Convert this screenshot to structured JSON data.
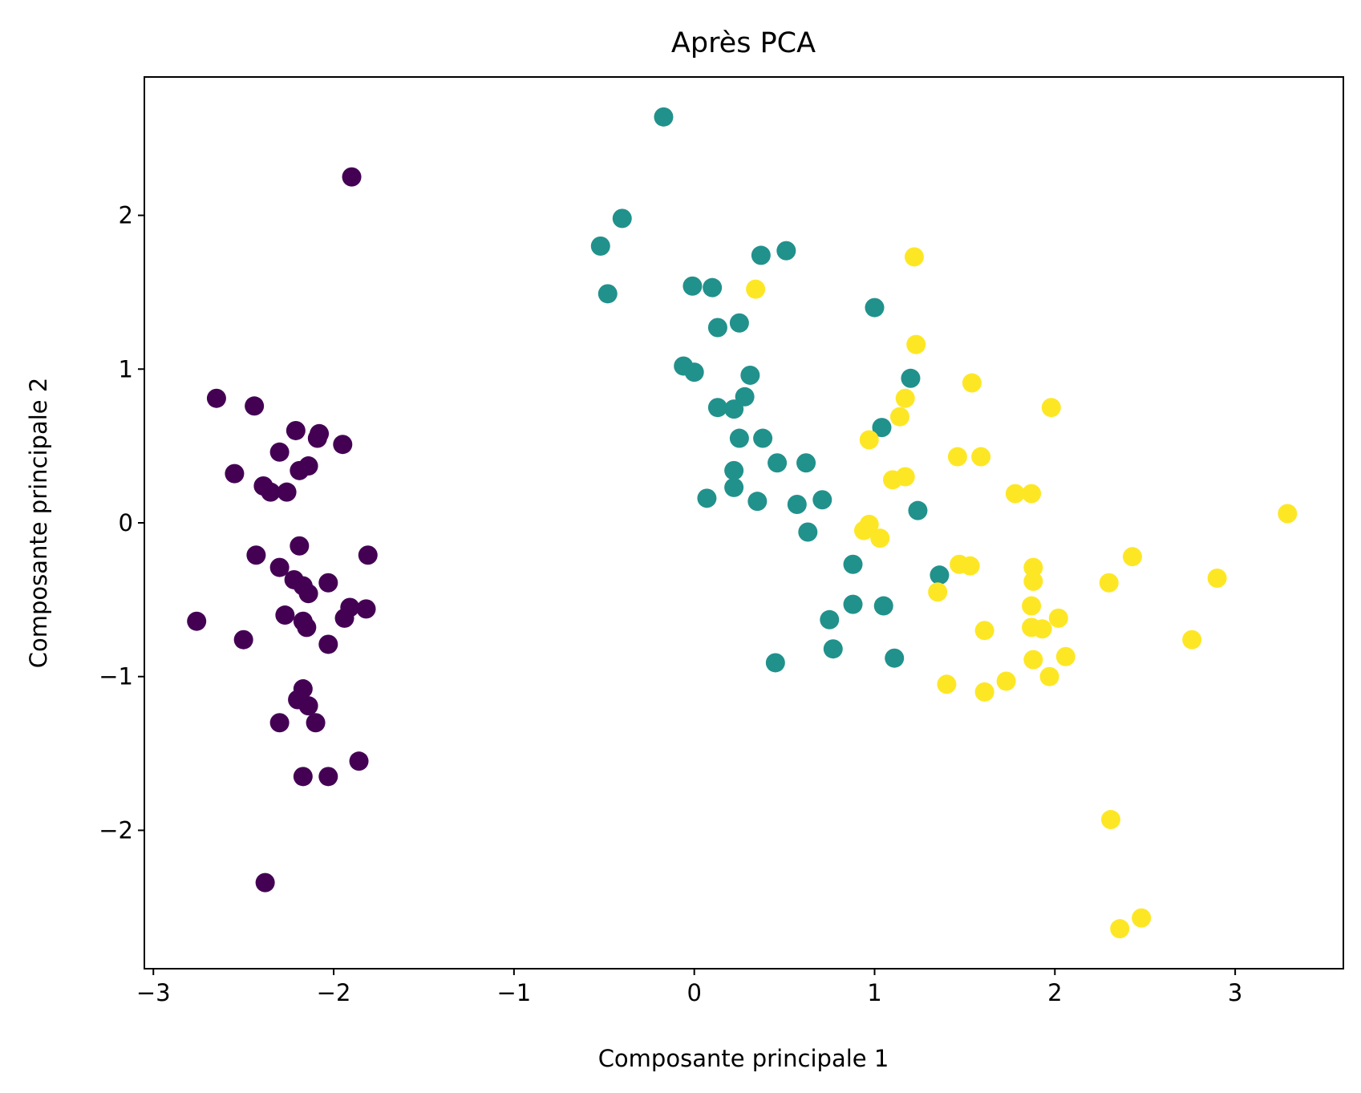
{
  "chart_data": {
    "type": "scatter",
    "title": "Après PCA",
    "xlabel": "Composante principale 1",
    "ylabel": "Composante principale 2",
    "xlim": [
      -3.05,
      3.6
    ],
    "ylim": [
      -2.9,
      2.9
    ],
    "x_ticks": [
      {
        "value": -3,
        "label": "−3"
      },
      {
        "value": -2,
        "label": "−2"
      },
      {
        "value": -1,
        "label": "−1"
      },
      {
        "value": 0,
        "label": "0"
      },
      {
        "value": 1,
        "label": "1"
      },
      {
        "value": 2,
        "label": "2"
      },
      {
        "value": 3,
        "label": "3"
      }
    ],
    "y_ticks": [
      {
        "value": -2,
        "label": "−2"
      },
      {
        "value": -1,
        "label": "−1"
      },
      {
        "value": 0,
        "label": "0"
      },
      {
        "value": 1,
        "label": "1"
      },
      {
        "value": 2,
        "label": "2"
      }
    ],
    "grid": false,
    "series": [
      {
        "color": "#440154",
        "points": [
          [
            -1.9,
            2.25
          ],
          [
            -2.65,
            0.81
          ],
          [
            -2.44,
            0.76
          ],
          [
            -2.21,
            0.6
          ],
          [
            -2.08,
            0.58
          ],
          [
            -2.09,
            0.55
          ],
          [
            -1.95,
            0.51
          ],
          [
            -2.3,
            0.46
          ],
          [
            -2.55,
            0.32
          ],
          [
            -2.14,
            0.37
          ],
          [
            -2.19,
            0.34
          ],
          [
            -2.39,
            0.24
          ],
          [
            -2.35,
            0.2
          ],
          [
            -2.26,
            0.2
          ],
          [
            -2.19,
            -0.15
          ],
          [
            -2.43,
            -0.21
          ],
          [
            -1.81,
            -0.21
          ],
          [
            -2.3,
            -0.29
          ],
          [
            -2.22,
            -0.37
          ],
          [
            -2.17,
            -0.41
          ],
          [
            -2.03,
            -0.39
          ],
          [
            -2.14,
            -0.46
          ],
          [
            -1.91,
            -0.55
          ],
          [
            -1.82,
            -0.56
          ],
          [
            -2.76,
            -0.64
          ],
          [
            -2.27,
            -0.6
          ],
          [
            -2.17,
            -0.64
          ],
          [
            -2.15,
            -0.68
          ],
          [
            -1.94,
            -0.62
          ],
          [
            -2.5,
            -0.76
          ],
          [
            -2.03,
            -0.79
          ],
          [
            -2.17,
            -1.08
          ],
          [
            -2.2,
            -1.15
          ],
          [
            -2.14,
            -1.19
          ],
          [
            -2.3,
            -1.3
          ],
          [
            -2.1,
            -1.3
          ],
          [
            -1.86,
            -1.55
          ],
          [
            -2.17,
            -1.65
          ],
          [
            -2.03,
            -1.65
          ],
          [
            -2.38,
            -2.34
          ]
        ]
      },
      {
        "color": "#21918c",
        "points": [
          [
            -0.17,
            2.64
          ],
          [
            -0.4,
            1.98
          ],
          [
            -0.52,
            1.8
          ],
          [
            -0.48,
            1.49
          ],
          [
            0.37,
            1.74
          ],
          [
            0.51,
            1.77
          ],
          [
            -0.01,
            1.54
          ],
          [
            0.1,
            1.53
          ],
          [
            1.0,
            1.4
          ],
          [
            0.13,
            1.27
          ],
          [
            0.25,
            1.3
          ],
          [
            -0.06,
            1.02
          ],
          [
            0.0,
            0.98
          ],
          [
            0.31,
            0.96
          ],
          [
            0.28,
            0.82
          ],
          [
            0.13,
            0.75
          ],
          [
            0.22,
            0.74
          ],
          [
            1.2,
            0.94
          ],
          [
            0.25,
            0.55
          ],
          [
            0.38,
            0.55
          ],
          [
            1.04,
            0.62
          ],
          [
            0.46,
            0.39
          ],
          [
            0.62,
            0.39
          ],
          [
            0.22,
            0.34
          ],
          [
            0.22,
            0.23
          ],
          [
            0.07,
            0.16
          ],
          [
            0.35,
            0.14
          ],
          [
            0.57,
            0.12
          ],
          [
            0.71,
            0.15
          ],
          [
            1.24,
            0.08
          ],
          [
            0.63,
            -0.06
          ],
          [
            0.88,
            -0.27
          ],
          [
            1.36,
            -0.34
          ],
          [
            0.88,
            -0.53
          ],
          [
            1.05,
            -0.54
          ],
          [
            0.75,
            -0.63
          ],
          [
            0.77,
            -0.82
          ],
          [
            0.45,
            -0.91
          ],
          [
            1.11,
            -0.88
          ]
        ]
      },
      {
        "color": "#fde725",
        "points": [
          [
            0.34,
            1.52
          ],
          [
            1.22,
            1.73
          ],
          [
            1.23,
            1.16
          ],
          [
            1.54,
            0.91
          ],
          [
            1.17,
            0.81
          ],
          [
            1.98,
            0.75
          ],
          [
            1.14,
            0.69
          ],
          [
            0.97,
            0.54
          ],
          [
            1.46,
            0.43
          ],
          [
            1.59,
            0.43
          ],
          [
            1.1,
            0.28
          ],
          [
            1.17,
            0.3
          ],
          [
            1.78,
            0.19
          ],
          [
            1.87,
            0.19
          ],
          [
            3.29,
            0.06
          ],
          [
            0.97,
            -0.01
          ],
          [
            0.94,
            -0.05
          ],
          [
            1.03,
            -0.1
          ],
          [
            1.47,
            -0.27
          ],
          [
            1.53,
            -0.28
          ],
          [
            1.88,
            -0.29
          ],
          [
            1.88,
            -0.38
          ],
          [
            2.43,
            -0.22
          ],
          [
            2.9,
            -0.36
          ],
          [
            2.3,
            -0.39
          ],
          [
            1.35,
            -0.45
          ],
          [
            1.87,
            -0.54
          ],
          [
            2.02,
            -0.62
          ],
          [
            1.87,
            -0.68
          ],
          [
            1.93,
            -0.69
          ],
          [
            1.61,
            -0.7
          ],
          [
            2.76,
            -0.76
          ],
          [
            2.06,
            -0.87
          ],
          [
            1.88,
            -0.89
          ],
          [
            1.97,
            -1.0
          ],
          [
            1.73,
            -1.03
          ],
          [
            1.4,
            -1.05
          ],
          [
            1.61,
            -1.1
          ],
          [
            2.31,
            -1.93
          ],
          [
            2.48,
            -2.57
          ],
          [
            2.36,
            -2.64
          ]
        ]
      }
    ]
  }
}
